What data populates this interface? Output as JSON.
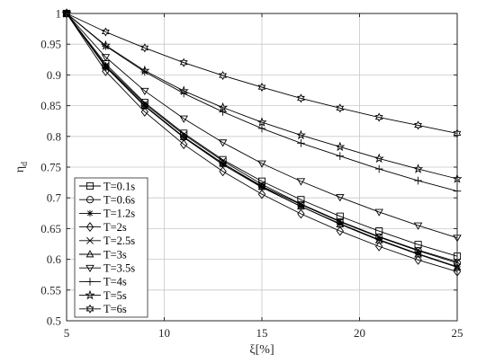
{
  "chart_data": {
    "type": "line",
    "title": "",
    "xlabel": "ξ[%]",
    "ylabel_main": "η",
    "ylabel_sub": "d",
    "xlim": [
      5,
      25
    ],
    "ylim": [
      0.5,
      1.0
    ],
    "xticks": [
      5,
      10,
      15,
      20,
      25
    ],
    "yticks": [
      0.5,
      0.55,
      0.6,
      0.65,
      0.7,
      0.75,
      0.8,
      0.85,
      0.9,
      0.95,
      1.0
    ],
    "xtick_labels": [
      "5",
      "10",
      "15",
      "20",
      "25"
    ],
    "ytick_labels": [
      "0.5",
      "0.55",
      "0.6",
      "0.65",
      "0.7",
      "0.75",
      "0.8",
      "0.85",
      "0.9",
      "0.95",
      "1"
    ],
    "grid": true,
    "legend_position": "bottom-left",
    "line_color": "#000000",
    "x": [
      5,
      7,
      9,
      11,
      13,
      15,
      17,
      19,
      21,
      23,
      25
    ],
    "series": [
      {
        "name": "T=0.1s",
        "marker": "square",
        "values": [
          1.0,
          0.918,
          0.855,
          0.805,
          0.762,
          0.727,
          0.697,
          0.67,
          0.646,
          0.624,
          0.605
        ]
      },
      {
        "name": "T=0.6s",
        "marker": "circle",
        "values": [
          1.0,
          0.913,
          0.85,
          0.799,
          0.756,
          0.719,
          0.689,
          0.661,
          0.636,
          0.614,
          0.594
        ]
      },
      {
        "name": "T=1.2s",
        "marker": "asterisk",
        "values": [
          1.0,
          0.913,
          0.849,
          0.798,
          0.754,
          0.717,
          0.686,
          0.658,
          0.632,
          0.609,
          0.588
        ]
      },
      {
        "name": "T=2s",
        "marker": "diamond",
        "values": [
          1.0,
          0.906,
          0.84,
          0.787,
          0.743,
          0.706,
          0.674,
          0.646,
          0.621,
          0.599,
          0.58
        ]
      },
      {
        "name": "T=2.5s",
        "marker": "cross",
        "values": [
          1.0,
          0.915,
          0.853,
          0.803,
          0.76,
          0.722,
          0.69,
          0.662,
          0.637,
          0.615,
          0.596
        ]
      },
      {
        "name": "T=3s",
        "marker": "triangle-up",
        "values": [
          1.0,
          0.914,
          0.85,
          0.799,
          0.756,
          0.718,
          0.686,
          0.657,
          0.631,
          0.608,
          0.587
        ]
      },
      {
        "name": "T=3.5s",
        "marker": "triangle-down",
        "values": [
          1.0,
          0.929,
          0.874,
          0.829,
          0.79,
          0.756,
          0.727,
          0.701,
          0.677,
          0.655,
          0.635
        ]
      },
      {
        "name": "T=4s",
        "marker": "plus",
        "values": [
          1.0,
          0.947,
          0.905,
          0.87,
          0.84,
          0.813,
          0.789,
          0.768,
          0.747,
          0.728,
          0.711
        ]
      },
      {
        "name": "T=5s",
        "marker": "pentagram",
        "values": [
          1.0,
          0.948,
          0.907,
          0.874,
          0.847,
          0.823,
          0.802,
          0.783,
          0.764,
          0.747,
          0.731
        ]
      },
      {
        "name": "T=6s",
        "marker": "hexagram",
        "values": [
          1.0,
          0.97,
          0.944,
          0.92,
          0.899,
          0.88,
          0.862,
          0.846,
          0.831,
          0.818,
          0.805
        ]
      }
    ]
  }
}
